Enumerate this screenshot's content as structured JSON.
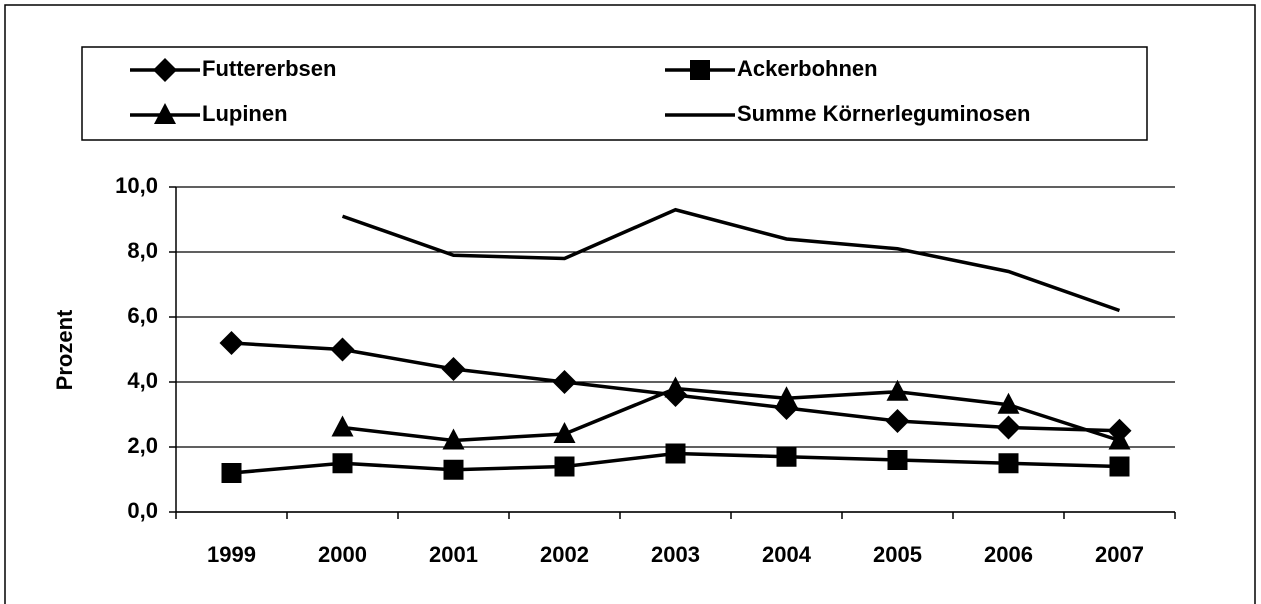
{
  "chart_data": {
    "type": "line",
    "ylabel": "Prozent",
    "categories": [
      "1999",
      "2000",
      "2001",
      "2002",
      "2003",
      "2004",
      "2005",
      "2006",
      "2007"
    ],
    "series": [
      {
        "name": "Futtererbsen",
        "color": "#000000",
        "marker": "diamond",
        "values": [
          5.2,
          5.0,
          4.4,
          4.0,
          3.6,
          3.2,
          2.8,
          2.6,
          2.5
        ]
      },
      {
        "name": "Ackerbohnen",
        "color": "#000000",
        "marker": "square",
        "values": [
          1.2,
          1.5,
          1.3,
          1.4,
          1.8,
          1.7,
          1.6,
          1.5,
          1.4
        ]
      },
      {
        "name": "Lupinen",
        "color": "#000000",
        "marker": "triangle",
        "values": [
          null,
          2.6,
          2.2,
          2.4,
          3.8,
          3.5,
          3.7,
          3.3,
          2.2
        ]
      },
      {
        "name": "Summe Körnerleguminosen",
        "color": "#000000",
        "marker": "none",
        "values": [
          null,
          9.1,
          7.9,
          7.8,
          9.3,
          8.4,
          8.1,
          7.4,
          6.2
        ]
      }
    ],
    "ylim": [
      0,
      10
    ],
    "yticks": [
      {
        "value": 0,
        "label": "0,0"
      },
      {
        "value": 2,
        "label": "2,0"
      },
      {
        "value": 4,
        "label": "4,0"
      },
      {
        "value": 6,
        "label": "6,0"
      },
      {
        "value": 8,
        "label": "8,0"
      },
      {
        "value": 10,
        "label": "10,0"
      }
    ],
    "grid": true,
    "legend": "top"
  }
}
